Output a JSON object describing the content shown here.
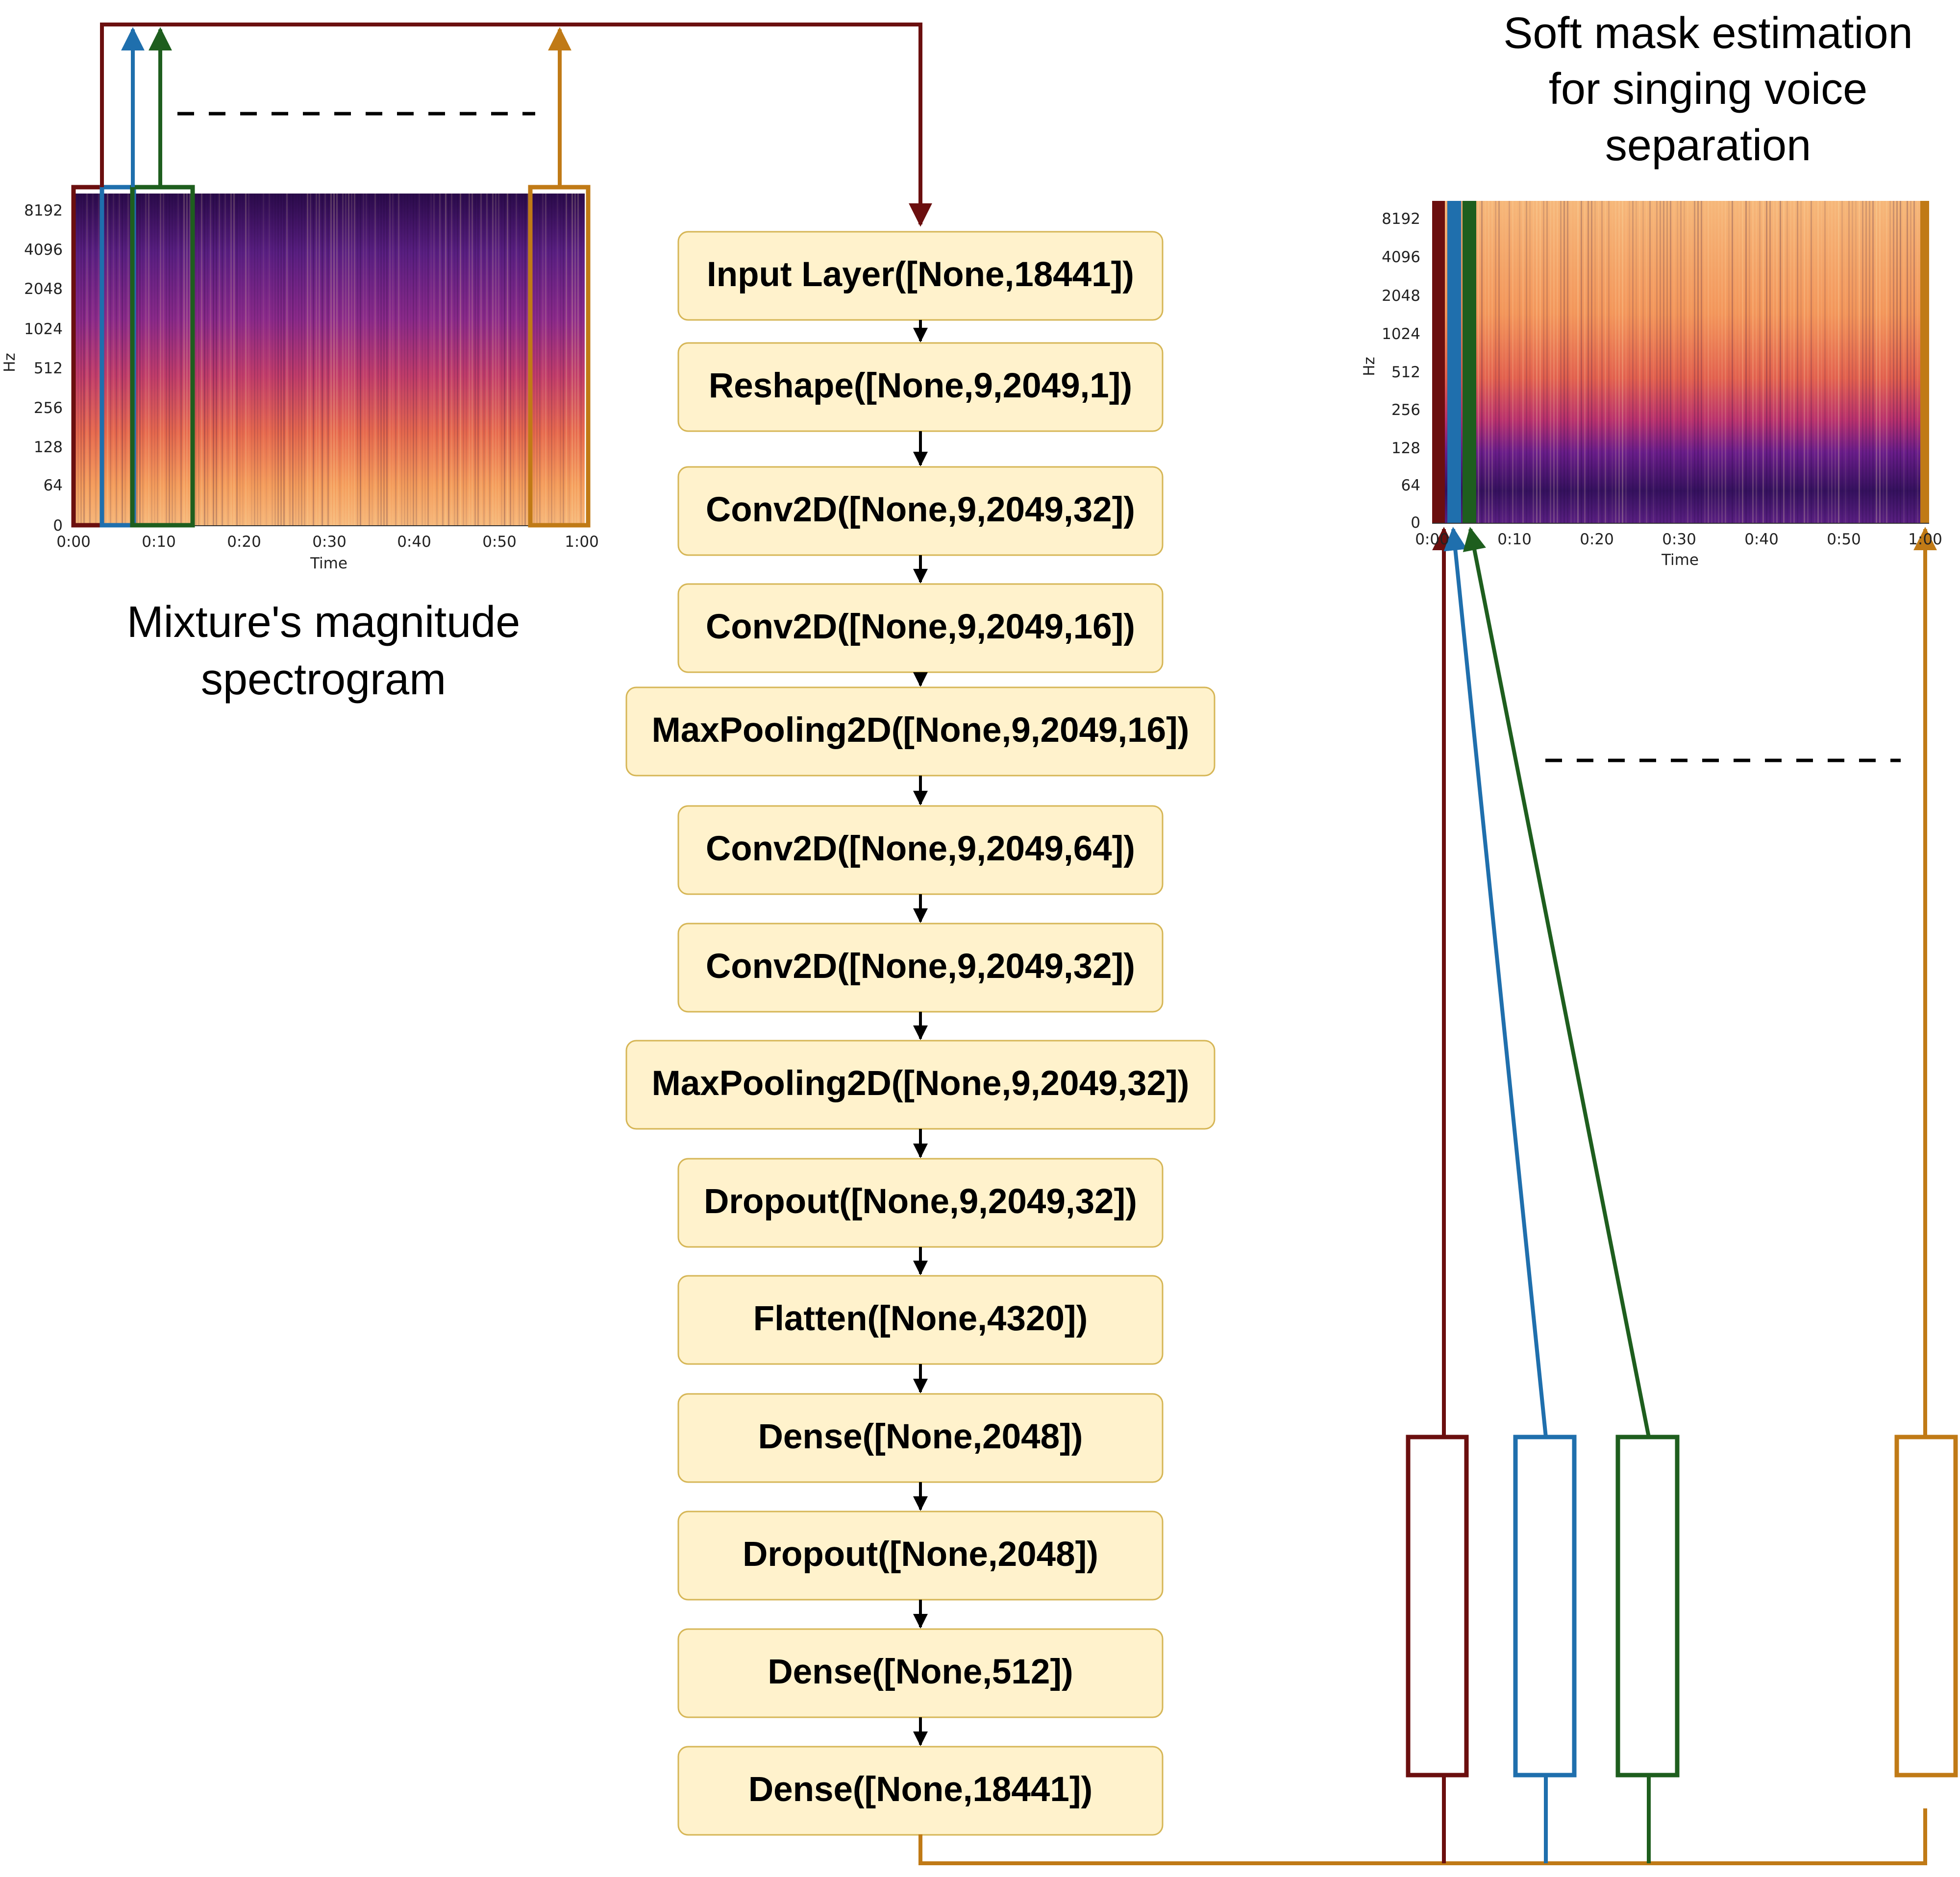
{
  "colors": {
    "red": "#6b0f0f",
    "blue": "#1f6fad",
    "green": "#1e5e1e",
    "orange": "#c07a16",
    "layer_fill": "#fff2cc",
    "layer_stroke": "#d6b656"
  },
  "left_panel": {
    "caption_line1": "Mixture's magnitude",
    "caption_line2": "spectrogram",
    "ylabel": "Hz",
    "xlabel": "Time",
    "y_ticks": [
      "8192",
      "4096",
      "2048",
      "1024",
      "512",
      "256",
      "128",
      "64",
      "0"
    ],
    "x_ticks": [
      "0:00",
      "0:10",
      "0:20",
      "0:30",
      "0:40",
      "0:50",
      "1:00"
    ]
  },
  "right_panel": {
    "title_line1": "Soft mask estimation",
    "title_line2": "for singing voice",
    "title_line3": "separation",
    "ylabel": "Hz",
    "xlabel": "Time",
    "y_ticks": [
      "8192",
      "4096",
      "2048",
      "1024",
      "512",
      "256",
      "128",
      "64",
      "0"
    ],
    "x_ticks": [
      "0:00",
      "0:10",
      "0:20",
      "0:30",
      "0:40",
      "0:50",
      "1:00"
    ]
  },
  "layers": [
    "Input Layer([None,18441])",
    "Reshape([None,9,2049,1])",
    "Conv2D([None,9,2049,32])",
    "Conv2D([None,9,2049,16])",
    "MaxPooling2D([None,9,2049,16])",
    "Conv2D([None,9,2049,64])",
    "Conv2D([None,9,2049,32])",
    "MaxPooling2D([None,9,2049,32])",
    "Dropout([None,9,2049,32])",
    "Flatten([None,4320])",
    "Dense([None,2048])",
    "Dropout([None,2048])",
    "Dense([None,512])",
    "Dense([None,18441])"
  ]
}
